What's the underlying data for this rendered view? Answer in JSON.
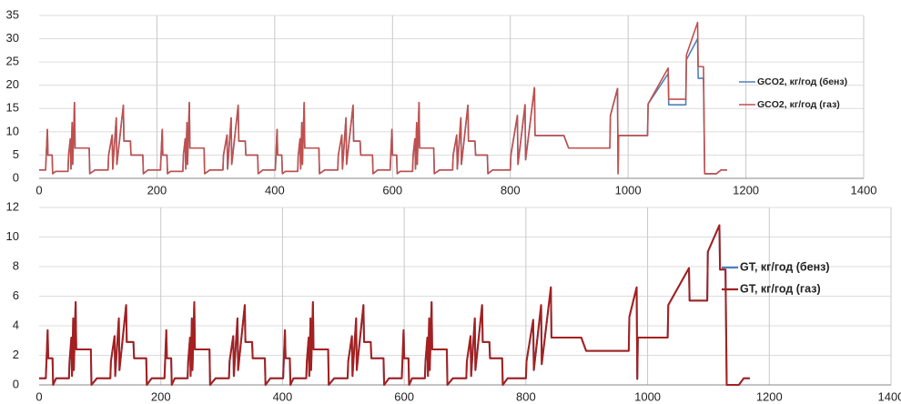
{
  "chart_data": [
    {
      "type": "line",
      "x": [
        0,
        11,
        14,
        15,
        22,
        23,
        28,
        49,
        50,
        53,
        54,
        56,
        57,
        60,
        61,
        85,
        86,
        95,
        117,
        118,
        124,
        125,
        131,
        132,
        143,
        144,
        155,
        156,
        176,
        177,
        185,
        195,
        206,
        209,
        210,
        217,
        218,
        223,
        244,
        245,
        248,
        249,
        251,
        252,
        255,
        256,
        280,
        281,
        290,
        312,
        313,
        319,
        320,
        326,
        327,
        338,
        339,
        350,
        351,
        371,
        372,
        380,
        390,
        401,
        404,
        405,
        412,
        413,
        418,
        439,
        440,
        443,
        444,
        446,
        447,
        450,
        451,
        475,
        476,
        485,
        507,
        508,
        514,
        515,
        521,
        522,
        533,
        534,
        545,
        546,
        566,
        567,
        575,
        585,
        596,
        599,
        600,
        607,
        608,
        613,
        634,
        635,
        638,
        639,
        641,
        642,
        645,
        646,
        670,
        671,
        680,
        702,
        703,
        709,
        710,
        716,
        717,
        728,
        729,
        740,
        741,
        761,
        762,
        770,
        780,
        800,
        801,
        812,
        813,
        825,
        826,
        841,
        842,
        891,
        899,
        969,
        970,
        982,
        983,
        984,
        1033,
        1034,
        1068,
        1069,
        1098,
        1099,
        1118,
        1119,
        1128,
        1130,
        1150,
        1158,
        1168
      ],
      "series": [
        {
          "name": "GCO2, кг/год (бенз)",
          "color": "#4f81bd",
          "values": [
            1.8,
            1.8,
            10.5,
            5,
            5,
            1,
            1.5,
            1.5,
            5,
            8.5,
            2,
            12,
            3,
            16.3,
            6.5,
            6.5,
            1,
            1.8,
            1.8,
            5,
            9.3,
            2,
            13,
            3,
            15.7,
            8,
            8,
            5,
            5,
            1,
            1.8,
            1.8,
            1.8,
            10.5,
            5,
            5,
            1,
            1.5,
            1.5,
            5,
            8.5,
            2,
            12,
            3,
            16.3,
            6.5,
            6.5,
            1,
            1.8,
            1.8,
            5,
            9.3,
            2,
            13,
            3,
            15.7,
            8,
            8,
            5,
            5,
            1,
            1.8,
            1.8,
            1.8,
            10.5,
            5,
            5,
            1,
            1.5,
            1.5,
            5,
            8.5,
            2,
            12,
            3,
            16.3,
            6.5,
            6.5,
            1,
            1.8,
            1.8,
            5,
            9.3,
            2,
            13,
            3,
            15.7,
            8,
            8,
            5,
            5,
            1,
            1.8,
            1.8,
            1.8,
            10.5,
            5,
            5,
            1,
            1.5,
            1.5,
            5,
            8.5,
            2,
            12,
            3,
            16.3,
            6.5,
            6.5,
            1,
            1.8,
            1.8,
            5,
            9.3,
            2,
            13,
            3,
            15.7,
            8,
            8,
            5,
            5,
            1,
            1.8,
            1.8,
            1.8,
            5,
            13.5,
            3,
            15.8,
            4,
            19.5,
            9.2,
            9.2,
            6.5,
            6.5,
            13.5,
            19.3,
            1,
            9.2,
            9.2,
            16,
            22.5,
            15.8,
            15.8,
            25.5,
            30,
            21.5,
            21.5,
            1,
            1,
            1.8,
            1.8
          ]
        },
        {
          "name": "GCO2, кг/год (газ)",
          "color": "#c0504d",
          "values": [
            1.8,
            1.8,
            10.5,
            5,
            5,
            1,
            1.5,
            1.5,
            5,
            8.5,
            2,
            12,
            3,
            16.3,
            6.5,
            6.5,
            1,
            1.8,
            1.8,
            5,
            9.3,
            2,
            13,
            3,
            15.7,
            8,
            8,
            5,
            5,
            1,
            1.8,
            1.8,
            1.8,
            10.5,
            5,
            5,
            1,
            1.5,
            1.5,
            5,
            8.5,
            2,
            12,
            3,
            16.3,
            6.5,
            6.5,
            1,
            1.8,
            1.8,
            5,
            9.3,
            2,
            13,
            3,
            15.7,
            8,
            8,
            5,
            5,
            1,
            1.8,
            1.8,
            1.8,
            10.5,
            5,
            5,
            1,
            1.5,
            1.5,
            5,
            8.5,
            2,
            12,
            3,
            16.3,
            6.5,
            6.5,
            1,
            1.8,
            1.8,
            5,
            9.3,
            2,
            13,
            3,
            15.7,
            8,
            8,
            5,
            5,
            1,
            1.8,
            1.8,
            1.8,
            10.5,
            5,
            5,
            1,
            1.5,
            1.5,
            5,
            8.5,
            2,
            12,
            3,
            16.3,
            6.5,
            6.5,
            1,
            1.8,
            1.8,
            5,
            9.3,
            2,
            13,
            3,
            15.7,
            8,
            8,
            5,
            5,
            1,
            1.8,
            1.8,
            1.8,
            5,
            13.5,
            3,
            15.8,
            4,
            19.5,
            9.2,
            9.2,
            6.5,
            6.5,
            13.5,
            19.3,
            1,
            9.2,
            9.2,
            16,
            23.7,
            17,
            17,
            26.5,
            33.5,
            24,
            24,
            1,
            1,
            1.8,
            1.8
          ]
        }
      ],
      "xlim": [
        0,
        1400
      ],
      "xticks": [
        0,
        200,
        400,
        600,
        800,
        1000,
        1200,
        1400
      ],
      "ylim": [
        0,
        35
      ],
      "yticks": [
        0,
        5,
        10,
        15,
        20,
        25,
        30,
        35
      ],
      "grid": true,
      "legend": "right"
    },
    {
      "type": "line",
      "x": [
        0,
        11,
        14,
        15,
        22,
        23,
        28,
        49,
        50,
        53,
        54,
        56,
        57,
        60,
        61,
        85,
        86,
        95,
        117,
        118,
        124,
        125,
        131,
        132,
        143,
        144,
        155,
        156,
        176,
        177,
        185,
        195,
        206,
        209,
        210,
        217,
        218,
        223,
        244,
        245,
        248,
        249,
        251,
        252,
        255,
        256,
        280,
        281,
        290,
        312,
        313,
        319,
        320,
        326,
        327,
        338,
        339,
        350,
        351,
        371,
        372,
        380,
        390,
        401,
        404,
        405,
        412,
        413,
        418,
        439,
        440,
        443,
        444,
        446,
        447,
        450,
        451,
        475,
        476,
        485,
        507,
        508,
        514,
        515,
        521,
        522,
        533,
        534,
        545,
        546,
        566,
        567,
        575,
        585,
        596,
        599,
        600,
        607,
        608,
        613,
        634,
        635,
        638,
        639,
        641,
        642,
        645,
        646,
        670,
        671,
        680,
        702,
        703,
        709,
        710,
        716,
        717,
        728,
        729,
        740,
        741,
        761,
        762,
        770,
        780,
        800,
        801,
        812,
        813,
        825,
        826,
        841,
        842,
        891,
        899,
        969,
        970,
        982,
        983,
        984,
        1033,
        1034,
        1068,
        1069,
        1098,
        1099,
        1118,
        1119,
        1128,
        1130,
        1150,
        1158,
        1168
      ],
      "series": [
        {
          "name": "GT, кг/год (бенз)",
          "color": "#4f81bd",
          "values": [
            0.45,
            0.45,
            3.7,
            1.8,
            1.8,
            0,
            0.45,
            0.45,
            1.6,
            3.2,
            0.6,
            4.5,
            1,
            5.6,
            2.4,
            2.4,
            0,
            0.45,
            0.45,
            1.6,
            3.3,
            0.6,
            4.5,
            1,
            5.4,
            2.9,
            2.9,
            1.8,
            1.8,
            0,
            0.45,
            0.45,
            0.45,
            3.7,
            1.8,
            1.8,
            0,
            0.45,
            0.45,
            1.6,
            3.2,
            0.6,
            4.5,
            1,
            5.6,
            2.4,
            2.4,
            0,
            0.45,
            0.45,
            1.6,
            3.3,
            0.6,
            4.5,
            1,
            5.4,
            2.9,
            2.9,
            1.8,
            1.8,
            0,
            0.45,
            0.45,
            0.45,
            3.7,
            1.8,
            1.8,
            0,
            0.45,
            0.45,
            1.6,
            3.2,
            0.6,
            4.5,
            1,
            5.6,
            2.4,
            2.4,
            0,
            0.45,
            0.45,
            1.6,
            3.3,
            0.6,
            4.5,
            1,
            5.4,
            2.9,
            2.9,
            1.8,
            1.8,
            0,
            0.45,
            0.45,
            0.45,
            3.7,
            1.8,
            1.8,
            0,
            0.45,
            0.45,
            1.6,
            3.2,
            0.6,
            4.5,
            1,
            5.6,
            2.4,
            2.4,
            0,
            0.45,
            0.45,
            1.6,
            3.3,
            0.6,
            4.5,
            1,
            5.4,
            2.9,
            2.9,
            1.8,
            1.8,
            0,
            0.45,
            0.45,
            0.45,
            1.6,
            4.4,
            1,
            5.4,
            1.4,
            6.6,
            3.2,
            3.2,
            2.3,
            2.3,
            4.6,
            6.6,
            0.4,
            3.2,
            3.2,
            5.4,
            7.9,
            5.7,
            5.7,
            9,
            10.8,
            7.8,
            7.8,
            0,
            0,
            0.45,
            0.45
          ]
        },
        {
          "name": "GT, кг/год (газ)",
          "color": "#a5201f",
          "values": [
            0.45,
            0.45,
            3.7,
            1.8,
            1.8,
            0,
            0.45,
            0.45,
            1.6,
            3.2,
            0.6,
            4.5,
            1,
            5.6,
            2.4,
            2.4,
            0,
            0.45,
            0.45,
            1.6,
            3.3,
            0.6,
            4.5,
            1,
            5.4,
            2.9,
            2.9,
            1.8,
            1.8,
            0,
            0.45,
            0.45,
            0.45,
            3.7,
            1.8,
            1.8,
            0,
            0.45,
            0.45,
            1.6,
            3.2,
            0.6,
            4.5,
            1,
            5.6,
            2.4,
            2.4,
            0,
            0.45,
            0.45,
            1.6,
            3.3,
            0.6,
            4.5,
            1,
            5.4,
            2.9,
            2.9,
            1.8,
            1.8,
            0,
            0.45,
            0.45,
            0.45,
            3.7,
            1.8,
            1.8,
            0,
            0.45,
            0.45,
            1.6,
            3.2,
            0.6,
            4.5,
            1,
            5.6,
            2.4,
            2.4,
            0,
            0.45,
            0.45,
            1.6,
            3.3,
            0.6,
            4.5,
            1,
            5.4,
            2.9,
            2.9,
            1.8,
            1.8,
            0,
            0.45,
            0.45,
            0.45,
            3.7,
            1.8,
            1.8,
            0,
            0.45,
            0.45,
            1.6,
            3.2,
            0.6,
            4.5,
            1,
            5.6,
            2.4,
            2.4,
            0,
            0.45,
            0.45,
            1.6,
            3.3,
            0.6,
            4.5,
            1,
            5.4,
            2.9,
            2.9,
            1.8,
            1.8,
            0,
            0.45,
            0.45,
            0.45,
            1.6,
            4.4,
            1,
            5.4,
            1.4,
            6.6,
            3.2,
            3.2,
            2.3,
            2.3,
            4.6,
            6.6,
            0.4,
            3.2,
            3.2,
            5.4,
            7.9,
            5.7,
            5.7,
            9,
            10.8,
            7.8,
            7.8,
            0,
            0,
            0.45,
            0.45
          ]
        }
      ],
      "xlim": [
        0,
        1400
      ],
      "xticks": [
        0,
        200,
        400,
        600,
        800,
        1000,
        1200,
        1400
      ],
      "ylim": [
        0,
        12
      ],
      "yticks": [
        0,
        2,
        4,
        6,
        8,
        10,
        12
      ],
      "grid": true,
      "legend": "right"
    }
  ]
}
